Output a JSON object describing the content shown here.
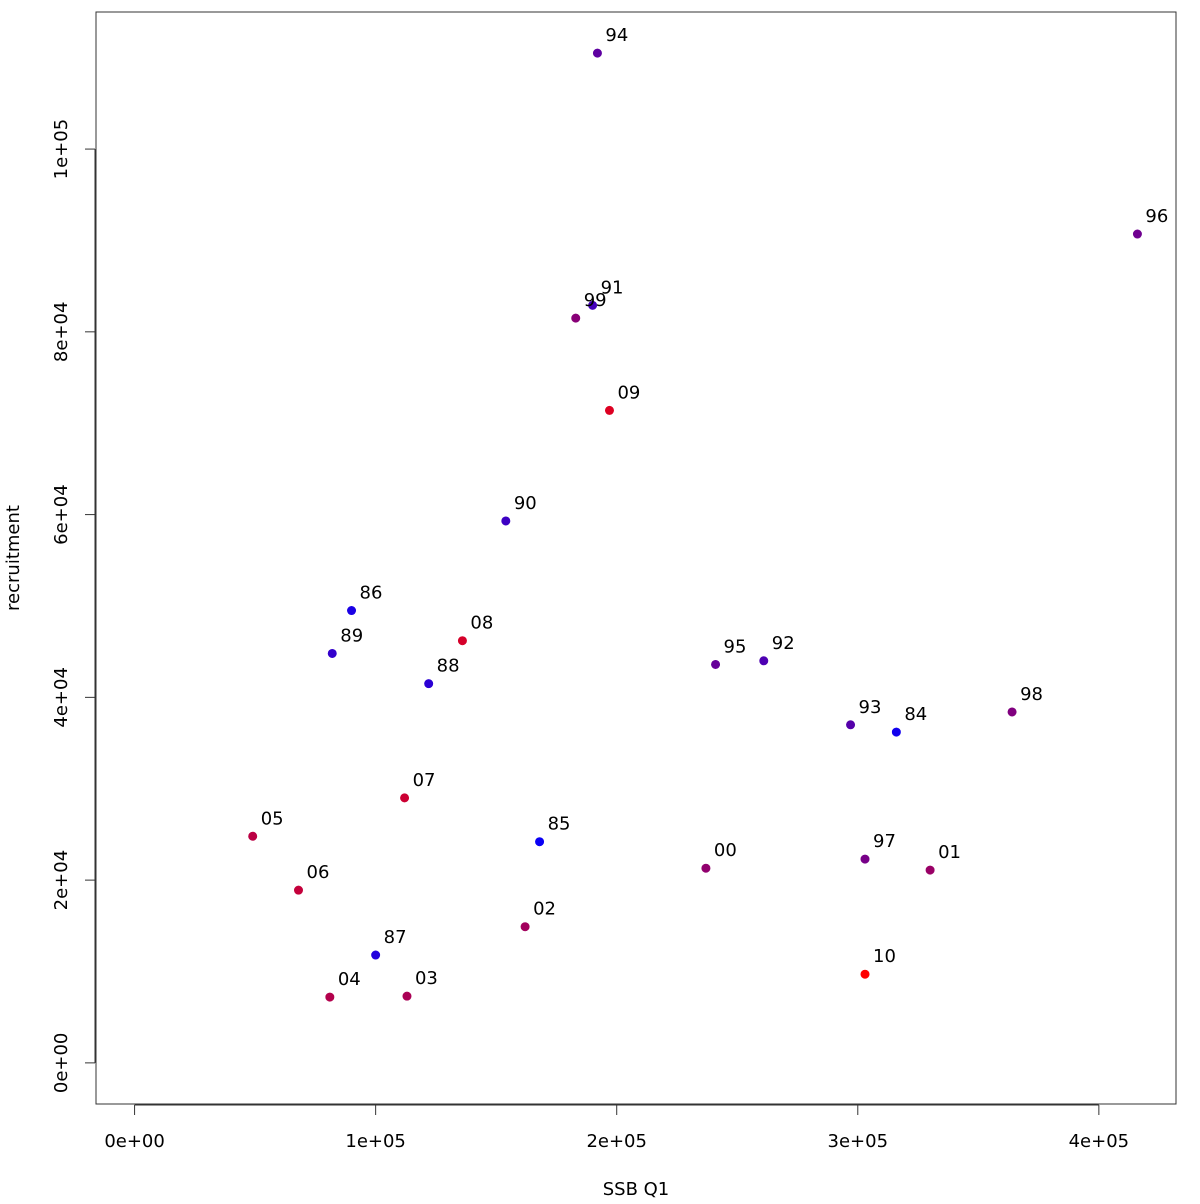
{
  "chart_data": {
    "type": "scatter",
    "title": "",
    "xlabel": "SSB Q1",
    "ylabel": "recruitment",
    "xlim": [
      -16000,
      432000
    ],
    "ylim": [
      -4500,
      115000
    ],
    "grid": false,
    "legend": "none",
    "x_ticks": [
      0,
      100000,
      200000,
      300000,
      400000
    ],
    "x_tick_labels": [
      "0e+00",
      "1e+05",
      "2e+05",
      "3e+05",
      "4e+05"
    ],
    "y_ticks": [
      0,
      20000,
      40000,
      60000,
      80000,
      100000
    ],
    "y_tick_labels": [
      "0e+00",
      "2e+04",
      "4e+04",
      "6e+04",
      "8e+04",
      "1e+05"
    ],
    "colors": {
      "early_years": "#0000ff",
      "late_years": "#ff0000",
      "axis": "#333333"
    },
    "points": [
      {
        "label": "84",
        "x": 316000,
        "y": 36200,
        "color": "#1100ee"
      },
      {
        "label": "85",
        "x": 168000,
        "y": 24200,
        "color": "#0a00f5"
      },
      {
        "label": "86",
        "x": 90000,
        "y": 49500,
        "color": "#1a00e5"
      },
      {
        "label": "87",
        "x": 100000,
        "y": 11800,
        "color": "#2200dd"
      },
      {
        "label": "88",
        "x": 122000,
        "y": 41500,
        "color": "#2b00d4"
      },
      {
        "label": "89",
        "x": 82000,
        "y": 44800,
        "color": "#3300cc"
      },
      {
        "label": "90",
        "x": 154000,
        "y": 59300,
        "color": "#3c00c3"
      },
      {
        "label": "91",
        "x": 190000,
        "y": 82900,
        "color": "#4400bb"
      },
      {
        "label": "92",
        "x": 261000,
        "y": 44000,
        "color": "#4d00b2"
      },
      {
        "label": "93",
        "x": 297000,
        "y": 37000,
        "color": "#5500aa"
      },
      {
        "label": "94",
        "x": 192000,
        "y": 110500,
        "color": "#5e00a1"
      },
      {
        "label": "95",
        "x": 241000,
        "y": 43600,
        "color": "#660099"
      },
      {
        "label": "96",
        "x": 416000,
        "y": 90700,
        "color": "#6f0090"
      },
      {
        "label": "97",
        "x": 303000,
        "y": 22300,
        "color": "#770088"
      },
      {
        "label": "98",
        "x": 364000,
        "y": 38400,
        "color": "#80007f"
      },
      {
        "label": "99",
        "x": 183000,
        "y": 81500,
        "color": "#880077"
      },
      {
        "label": "00",
        "x": 237000,
        "y": 21300,
        "color": "#91006e"
      },
      {
        "label": "01",
        "x": 330000,
        "y": 21100,
        "color": "#990066"
      },
      {
        "label": "02",
        "x": 162000,
        "y": 14900,
        "color": "#a2005d"
      },
      {
        "label": "03",
        "x": 113000,
        "y": 7300,
        "color": "#aa0055"
      },
      {
        "label": "04",
        "x": 81000,
        "y": 7200,
        "color": "#b3004c"
      },
      {
        "label": "05",
        "x": 49000,
        "y": 24800,
        "color": "#bb0044"
      },
      {
        "label": "06",
        "x": 68000,
        "y": 18900,
        "color": "#c4003b"
      },
      {
        "label": "07",
        "x": 112000,
        "y": 29000,
        "color": "#cc0033"
      },
      {
        "label": "08",
        "x": 136000,
        "y": 46200,
        "color": "#d5002a"
      },
      {
        "label": "09",
        "x": 197000,
        "y": 71400,
        "color": "#dd0022"
      },
      {
        "label": "10",
        "x": 303000,
        "y": 9700,
        "color": "#ff0000"
      }
    ]
  }
}
